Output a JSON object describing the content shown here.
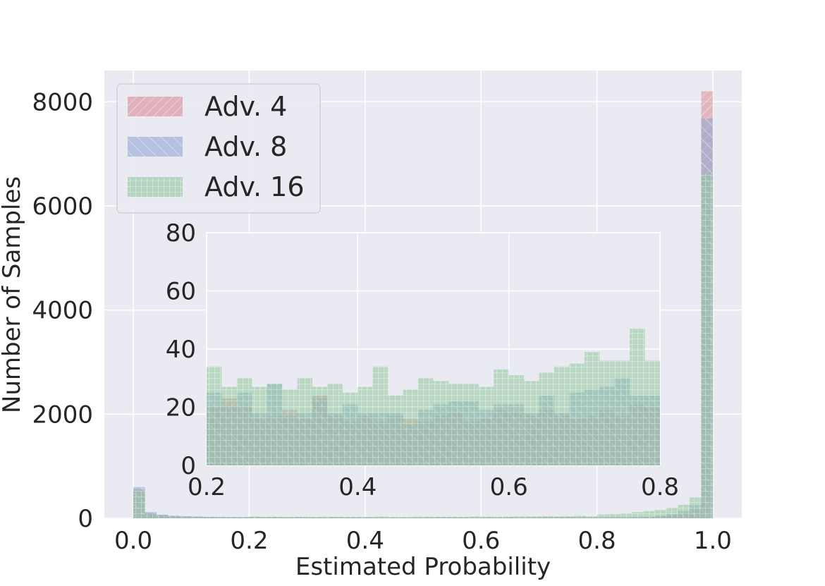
{
  "chart_data": {
    "type": "histogram",
    "xlabel": "Estimated Probability",
    "ylabel": "Number of Samples",
    "xlim": [
      -0.05,
      1.05
    ],
    "ylim": [
      0,
      8600
    ],
    "x_ticks": [
      "0.0",
      "0.2",
      "0.4",
      "0.6",
      "0.8",
      "1.0"
    ],
    "y_ticks": [
      "0",
      "2000",
      "4000",
      "6000",
      "8000"
    ],
    "grid": true,
    "legend_position": "top-left",
    "bin_width": 0.02,
    "series": [
      {
        "name": "Adv. 4",
        "color": "#d98a96",
        "hatch": "diagonal-forward",
        "bin_starts": [
          0.0,
          0.02,
          0.04,
          0.06,
          0.08,
          0.1,
          0.12,
          0.14,
          0.16,
          0.18,
          0.2,
          0.22,
          0.24,
          0.26,
          0.28,
          0.3,
          0.32,
          0.34,
          0.36,
          0.38,
          0.4,
          0.42,
          0.44,
          0.46,
          0.48,
          0.5,
          0.52,
          0.54,
          0.56,
          0.58,
          0.6,
          0.62,
          0.64,
          0.66,
          0.68,
          0.7,
          0.72,
          0.74,
          0.76,
          0.78,
          0.8,
          0.82,
          0.84,
          0.86,
          0.88,
          0.9,
          0.92,
          0.94,
          0.96,
          0.98
        ],
        "values": [
          560,
          100,
          60,
          40,
          35,
          30,
          25,
          22,
          22,
          20,
          20,
          23,
          20,
          16,
          17,
          19,
          16,
          24,
          17,
          15,
          17,
          15,
          17,
          16,
          15,
          17,
          18,
          15,
          16,
          19,
          18,
          17,
          19,
          17,
          16,
          17,
          19,
          17,
          21,
          20,
          21,
          21,
          20,
          21,
          30,
          40,
          55,
          90,
          160,
          8200
        ]
      },
      {
        "name": "Adv. 8",
        "color": "#8fa6d3",
        "hatch": "diagonal-back",
        "bin_starts": [
          0.0,
          0.02,
          0.04,
          0.06,
          0.08,
          0.1,
          0.12,
          0.14,
          0.16,
          0.18,
          0.2,
          0.22,
          0.24,
          0.26,
          0.28,
          0.3,
          0.32,
          0.34,
          0.36,
          0.38,
          0.4,
          0.42,
          0.44,
          0.46,
          0.48,
          0.5,
          0.52,
          0.54,
          0.56,
          0.58,
          0.6,
          0.62,
          0.64,
          0.66,
          0.68,
          0.7,
          0.72,
          0.74,
          0.76,
          0.78,
          0.8,
          0.82,
          0.84,
          0.86,
          0.88,
          0.9,
          0.92,
          0.94,
          0.96,
          0.98
        ],
        "values": [
          600,
          120,
          70,
          50,
          40,
          35,
          30,
          27,
          25,
          25,
          25,
          20,
          25,
          18,
          28,
          17,
          18,
          23,
          18,
          21,
          18,
          18,
          18,
          14,
          19,
          21,
          22,
          22,
          19,
          21,
          21,
          18,
          24,
          18,
          25,
          26,
          27,
          30,
          24,
          24,
          25,
          25,
          24,
          28,
          29,
          50,
          80,
          140,
          250,
          7680
        ]
      },
      {
        "name": "Adv. 16",
        "color": "#8fc79c",
        "hatch": "grid",
        "bin_starts": [
          0.0,
          0.02,
          0.04,
          0.06,
          0.08,
          0.1,
          0.12,
          0.14,
          0.16,
          0.18,
          0.2,
          0.22,
          0.24,
          0.26,
          0.28,
          0.3,
          0.32,
          0.34,
          0.36,
          0.38,
          0.4,
          0.42,
          0.44,
          0.46,
          0.48,
          0.5,
          0.52,
          0.54,
          0.56,
          0.58,
          0.6,
          0.62,
          0.64,
          0.66,
          0.68,
          0.7,
          0.72,
          0.74,
          0.76,
          0.78,
          0.8,
          0.82,
          0.84,
          0.86,
          0.88,
          0.9,
          0.92,
          0.94,
          0.96,
          0.98
        ],
        "values": [
          530,
          90,
          55,
          38,
          32,
          28,
          24,
          22,
          20,
          20,
          34,
          27,
          30,
          27,
          28,
          26,
          30,
          27,
          28,
          25,
          27,
          34,
          24,
          26,
          30,
          29,
          28,
          28,
          27,
          33,
          31,
          29,
          32,
          34,
          35,
          39,
          36,
          36,
          47,
          36,
          74,
          80,
          90,
          120,
          140,
          160,
          200,
          260,
          400,
          6620
        ]
      }
    ],
    "inset": {
      "xlim": [
        0.2,
        0.8
      ],
      "ylim": [
        0,
        80
      ],
      "x_ticks": [
        "0.2",
        "0.4",
        "0.6",
        "0.8"
      ],
      "y_ticks": [
        "0",
        "20",
        "40",
        "60",
        "80"
      ]
    }
  }
}
